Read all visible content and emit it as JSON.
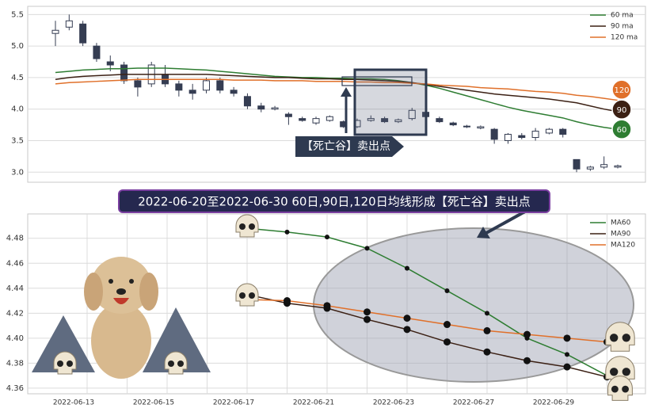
{
  "chart_data": [
    {
      "type": "candlestick",
      "open": [
        5.2,
        5.3,
        5.35,
        5.0,
        4.75,
        4.7,
        4.45,
        4.4,
        4.55,
        4.4,
        4.3,
        4.3,
        4.45,
        4.3,
        4.2,
        4.05,
        4.0,
        3.92,
        3.85,
        3.78,
        3.82,
        3.8,
        3.72,
        3.82,
        3.85,
        3.8,
        3.85,
        3.95,
        3.85,
        3.78,
        3.73,
        3.7,
        3.68,
        3.5,
        3.58,
        3.55,
        3.62,
        3.68,
        3.2,
        3.05,
        3.08,
        3.08
      ],
      "high": [
        5.4,
        5.5,
        5.4,
        5.05,
        4.85,
        4.75,
        4.5,
        4.75,
        4.7,
        4.45,
        4.4,
        4.5,
        4.5,
        4.35,
        4.25,
        4.1,
        4.05,
        3.95,
        3.88,
        3.88,
        3.9,
        3.82,
        3.85,
        3.9,
        3.88,
        3.85,
        4.02,
        3.98,
        3.88,
        3.8,
        3.75,
        3.74,
        3.7,
        3.62,
        3.62,
        3.7,
        3.7,
        3.7,
        3.2,
        3.1,
        3.25,
        3.12
      ],
      "low": [
        5.0,
        5.25,
        5.0,
        4.75,
        4.6,
        4.4,
        4.2,
        4.35,
        4.35,
        4.2,
        4.15,
        4.25,
        4.25,
        4.2,
        4.0,
        3.95,
        3.98,
        3.75,
        3.8,
        3.75,
        3.8,
        3.7,
        3.7,
        3.8,
        3.78,
        3.78,
        3.82,
        3.85,
        3.78,
        3.73,
        3.7,
        3.68,
        3.45,
        3.45,
        3.52,
        3.5,
        3.6,
        3.55,
        3.0,
        3.02,
        3.05,
        3.06
      ],
      "close": [
        5.25,
        5.4,
        5.05,
        4.8,
        4.7,
        4.45,
        4.35,
        4.7,
        4.4,
        4.3,
        4.25,
        4.45,
        4.3,
        4.25,
        4.05,
        4.0,
        4.02,
        3.88,
        3.82,
        3.85,
        3.88,
        3.72,
        3.82,
        3.85,
        3.8,
        3.83,
        3.98,
        3.88,
        3.8,
        3.75,
        3.72,
        3.72,
        3.52,
        3.6,
        3.55,
        3.65,
        3.68,
        3.6,
        3.05,
        3.08,
        3.12,
        3.1
      ],
      "series": [
        {
          "name": "60 ma",
          "end_label": "60",
          "color": "#2e7d32",
          "values": [
            4.58,
            4.6,
            4.62,
            4.63,
            4.64,
            4.64,
            4.65,
            4.65,
            4.65,
            4.64,
            4.63,
            4.62,
            4.6,
            4.58,
            4.56,
            4.54,
            4.52,
            4.51,
            4.5,
            4.5,
            4.49,
            4.49,
            4.48,
            4.48,
            4.47,
            4.45,
            4.42,
            4.38,
            4.33,
            4.27,
            4.21,
            4.15,
            4.09,
            4.03,
            3.98,
            3.94,
            3.9,
            3.86,
            3.8,
            3.75,
            3.71,
            3.68
          ]
        },
        {
          "name": "90 ma",
          "end_label": "90",
          "color": "#3b2014",
          "values": [
            4.47,
            4.5,
            4.52,
            4.53,
            4.54,
            4.55,
            4.55,
            4.55,
            4.55,
            4.55,
            4.55,
            4.55,
            4.54,
            4.53,
            4.52,
            4.51,
            4.5,
            4.5,
            4.49,
            4.48,
            4.48,
            4.47,
            4.47,
            4.46,
            4.45,
            4.44,
            4.42,
            4.39,
            4.36,
            4.33,
            4.3,
            4.27,
            4.24,
            4.22,
            4.2,
            4.18,
            4.16,
            4.13,
            4.1,
            4.05,
            4.0,
            3.96
          ]
        },
        {
          "name": "120 ma",
          "end_label": "120",
          "color": "#e0702a",
          "values": [
            4.4,
            4.42,
            4.43,
            4.44,
            4.45,
            4.46,
            4.47,
            4.47,
            4.47,
            4.47,
            4.47,
            4.47,
            4.47,
            4.46,
            4.46,
            4.46,
            4.45,
            4.45,
            4.45,
            4.44,
            4.44,
            4.44,
            4.43,
            4.43,
            4.42,
            4.42,
            4.41,
            4.4,
            4.38,
            4.37,
            4.36,
            4.34,
            4.33,
            4.32,
            4.3,
            4.28,
            4.27,
            4.25,
            4.22,
            4.2,
            4.17,
            4.14
          ]
        }
      ],
      "annotation": "【死亡谷】卖出点",
      "ylim": [
        2.84,
        5.63
      ],
      "yticks": [
        {
          "value": 3,
          "label": "3.0"
        },
        3.5,
        {
          "value": 4,
          "label": "4.0"
        },
        4.5,
        {
          "value": 5,
          "label": "5.0"
        },
        5.5
      ],
      "grid": true,
      "legend": "upper right"
    },
    {
      "type": "line",
      "title": "2022-06-20至2022-06-30 60日,90日,120日均线形成【死亡谷】卖出点",
      "categories": [
        "2022-06-13",
        null,
        "2022-06-15",
        null,
        "2022-06-17",
        null,
        "2022-06-21",
        null,
        "2022-06-23",
        null,
        "2022-06-27",
        null,
        "2022-06-29",
        null
      ],
      "series": [
        {
          "name": "MA60",
          "color": "#2e7d32",
          "values": [
            null,
            null,
            null,
            null,
            4.488,
            4.485,
            4.481,
            4.472,
            4.456,
            4.438,
            4.42,
            4.4,
            4.387,
            4.37
          ]
        },
        {
          "name": "MA90",
          "color": "#3b2014",
          "values": [
            null,
            null,
            null,
            null,
            4.435,
            4.428,
            4.424,
            4.415,
            4.407,
            4.397,
            4.389,
            4.382,
            4.377,
            4.369
          ]
        },
        {
          "name": "MA120",
          "color": "#e0702a",
          "values": [
            null,
            null,
            null,
            null,
            4.431,
            4.43,
            4.426,
            4.421,
            4.416,
            4.411,
            4.406,
            4.403,
            4.4,
            4.397
          ]
        }
      ],
      "ylim": [
        4.3555,
        4.4995
      ],
      "yticks": [
        4.36,
        4.38,
        {
          "value": 4.4,
          "label": "4.40"
        },
        4.42,
        4.44,
        4.46,
        4.48
      ],
      "grid": true,
      "legend": "upper right"
    }
  ]
}
